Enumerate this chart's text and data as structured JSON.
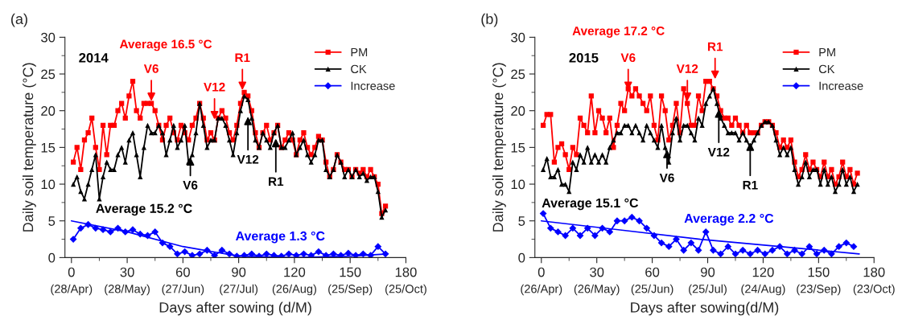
{
  "chart_data": [
    {
      "type": "line",
      "title": "(a)",
      "xlabel": "Days after sowing (d/M)",
      "ylabel": "Daily soil temperature (°C)",
      "x": [
        1,
        3,
        5,
        7,
        9,
        11,
        13,
        15,
        17,
        19,
        21,
        23,
        25,
        27,
        29,
        31,
        33,
        35,
        37,
        39,
        41,
        43,
        45,
        47,
        49,
        51,
        53,
        55,
        57,
        59,
        61,
        63,
        65,
        67,
        69,
        71,
        73,
        75,
        77,
        79,
        81,
        83,
        85,
        87,
        89,
        91,
        93,
        95,
        97,
        99,
        101,
        103,
        105,
        107,
        109,
        111,
        113,
        115,
        117,
        119,
        121,
        123,
        125,
        127,
        129,
        131,
        133,
        135,
        137,
        139,
        141,
        143,
        145,
        147,
        149,
        151,
        153,
        155,
        157,
        159,
        161,
        163,
        165,
        167,
        169
      ],
      "series": [
        {
          "name": "PM",
          "color": "#ff0000",
          "marker": "square",
          "values": [
            13,
            15,
            12,
            16,
            17,
            19,
            15,
            12,
            18,
            14,
            18,
            18,
            20,
            21,
            19,
            22,
            24,
            20,
            19,
            21,
            21,
            21,
            20,
            18,
            16,
            18,
            19,
            17,
            16,
            18,
            17,
            16,
            18,
            19,
            21,
            19,
            16,
            17,
            16,
            19,
            20,
            19,
            17,
            16,
            18,
            21,
            22.5,
            22,
            20,
            17,
            15,
            17,
            18,
            16,
            17,
            18,
            15,
            16,
            17,
            16,
            14,
            16,
            17,
            15,
            14,
            15,
            16.5,
            16,
            13,
            11,
            12,
            14,
            13,
            12,
            12,
            11,
            12,
            11.5,
            12,
            11,
            12,
            11,
            10,
            6,
            7
          ]
        },
        {
          "name": "CK",
          "color": "#000000",
          "marker": "triangle",
          "values": [
            10,
            11,
            9,
            8,
            10,
            12,
            14,
            8,
            11,
            13,
            12,
            12,
            14,
            15,
            13,
            16,
            17,
            14,
            11,
            15,
            18,
            17,
            17,
            18,
            17,
            14,
            16,
            18,
            15,
            16,
            18,
            13,
            14,
            17,
            21,
            18,
            15,
            16,
            16,
            19,
            19,
            18,
            16,
            14,
            17,
            20,
            22,
            21.5,
            19,
            16,
            15,
            17,
            16,
            15,
            17,
            18,
            15,
            15,
            16,
            17,
            14,
            15,
            16,
            14,
            13,
            14,
            16,
            16,
            12,
            11,
            12,
            14,
            13,
            11,
            12,
            11,
            12,
            11,
            11.5,
            10.5,
            11,
            11,
            9,
            5.5,
            6.5
          ]
        },
        {
          "name": "Increase",
          "color": "#0000ff",
          "marker": "diamond",
          "x": [
            1,
            5,
            9,
            13,
            17,
            21,
            25,
            29,
            33,
            37,
            41,
            45,
            49,
            53,
            57,
            61,
            65,
            69,
            73,
            77,
            81,
            85,
            89,
            93,
            97,
            101,
            105,
            109,
            113,
            117,
            121,
            125,
            129,
            133,
            137,
            141,
            145,
            149,
            153,
            157,
            161,
            165,
            169
          ],
          "values": [
            2.5,
            4,
            4.5,
            4,
            3.8,
            3.5,
            4,
            3.5,
            3.8,
            3.2,
            3,
            3.5,
            2,
            1.5,
            0.5,
            0.8,
            0.3,
            0.5,
            1,
            0.3,
            1,
            0.5,
            0.2,
            0.3,
            0.5,
            0.2,
            0.5,
            0.3,
            0.2,
            0.5,
            0.3,
            0.5,
            0.3,
            0.8,
            0.3,
            0.5,
            0.3,
            0.6,
            0.3,
            0.5,
            0.3,
            1.5,
            0.5
          ]
        },
        {
          "type": "line",
          "color": "#0000ff",
          "marker": "none",
          "x": [
            0,
            30,
            60,
            90,
            120,
            150,
            170
          ],
          "values": [
            5,
            3.5,
            1.5,
            0.2,
            0,
            0.2,
            0.5
          ]
        }
      ],
      "annotations": [
        "2014",
        "Average 16.5 °C",
        "Average 15.2 °C",
        "Average 1.3 °C",
        {
          "text": "V6",
          "x": 43,
          "y": 21
        },
        {
          "text": "V12",
          "x": 77,
          "y": 18.5
        },
        {
          "text": "R1",
          "x": 92,
          "y": 22.5
        },
        {
          "text": "V6",
          "x": 64,
          "y": 14
        },
        {
          "text": "V12",
          "x": 95,
          "y": 19.5
        },
        {
          "text": "R1",
          "x": 110,
          "y": 16.5
        },
        "(28/Apr)",
        "(28/May)",
        "(27/Jun)",
        "(27/Jul)",
        "(26/Aug)",
        "(25/Sep)",
        "(25/Oct)"
      ],
      "xlim": [
        -3.5,
        180
      ],
      "ylim": [
        0,
        30
      ],
      "xticks": [
        0,
        30,
        60,
        90,
        120,
        150,
        180
      ],
      "yticks": [
        0,
        5,
        10,
        15,
        20,
        25,
        30
      ],
      "grid": false,
      "legend": "top right",
      "line_style": "solid"
    },
    {
      "type": "line",
      "title": "(b)",
      "xlabel": "Days after sowing(d/M)",
      "ylabel": "Daily soil temperature (°C)",
      "x": [
        1,
        3,
        5,
        7,
        9,
        11,
        13,
        15,
        17,
        19,
        21,
        23,
        25,
        27,
        29,
        31,
        33,
        35,
        37,
        39,
        41,
        43,
        45,
        47,
        49,
        51,
        53,
        55,
        57,
        59,
        61,
        63,
        65,
        67,
        69,
        71,
        73,
        75,
        77,
        79,
        81,
        83,
        85,
        87,
        89,
        91,
        93,
        95,
        97,
        99,
        101,
        103,
        105,
        107,
        109,
        111,
        113,
        115,
        117,
        119,
        121,
        123,
        125,
        127,
        129,
        131,
        133,
        135,
        137,
        139,
        141,
        143,
        145,
        147,
        149,
        151,
        153,
        155,
        157,
        159,
        161,
        163,
        165,
        167,
        169,
        171
      ],
      "series": [
        {
          "name": "PM",
          "color": "#ff0000",
          "marker": "square",
          "values": [
            18,
            19.5,
            19.5,
            13,
            15,
            15.5,
            14,
            12,
            15,
            14,
            19,
            18,
            17,
            22,
            17,
            20,
            19,
            17,
            19,
            15,
            18,
            21,
            20,
            23,
            22,
            23,
            22,
            21,
            20,
            22,
            18,
            16,
            22,
            20,
            16,
            18,
            21,
            17,
            23,
            21,
            18,
            18,
            22,
            20,
            24,
            24,
            23,
            22,
            20,
            19,
            19,
            18,
            19,
            18,
            17,
            18,
            17,
            17,
            17,
            18,
            18.5,
            18.5,
            18,
            17,
            15,
            16,
            15,
            16,
            13,
            11,
            12,
            14,
            12,
            13,
            12,
            11,
            13,
            11,
            12,
            10,
            11,
            13,
            11,
            12,
            10,
            11.5
          ]
        },
        {
          "name": "CK",
          "color": "#000000",
          "marker": "triangle",
          "values": [
            12,
            13.5,
            11,
            11,
            12,
            10,
            10,
            9,
            13,
            12,
            14,
            13,
            15,
            13,
            14,
            13,
            14,
            13,
            15,
            16,
            17,
            17,
            18,
            18,
            17,
            18,
            17,
            16,
            18,
            17,
            16,
            15,
            18,
            15,
            13,
            17,
            19,
            16,
            18,
            18,
            17,
            16,
            19,
            18,
            21,
            22,
            23,
            21,
            19,
            18,
            17,
            17,
            17,
            16,
            17,
            16,
            15,
            16,
            17,
            18,
            18.5,
            18.5,
            18,
            16,
            14,
            15,
            14,
            15,
            12,
            10,
            11,
            13,
            11,
            12,
            12,
            10,
            12,
            10,
            11,
            9,
            10,
            12,
            10,
            11,
            9,
            10
          ]
        },
        {
          "name": "Increase",
          "color": "#0000ff",
          "marker": "diamond",
          "x": [
            1,
            5,
            9,
            13,
            17,
            21,
            25,
            29,
            33,
            37,
            41,
            45,
            49,
            53,
            57,
            61,
            65,
            69,
            73,
            77,
            81,
            85,
            89,
            93,
            97,
            101,
            105,
            109,
            113,
            117,
            121,
            125,
            129,
            133,
            137,
            141,
            145,
            149,
            153,
            157,
            161,
            165,
            169
          ],
          "values": [
            6,
            4,
            3.5,
            3,
            4,
            3,
            4,
            3,
            4,
            3.5,
            5,
            5,
            5.5,
            5,
            4,
            3,
            2,
            1.5,
            2.5,
            1,
            2,
            1,
            3.5,
            1,
            0.5,
            1.5,
            0.5,
            1,
            0.5,
            1,
            0.5,
            1,
            1.5,
            0.5,
            1,
            0.5,
            1.5,
            0.5,
            1,
            0.5,
            1.5,
            2,
            1.5
          ]
        },
        {
          "type": "line",
          "color": "#0000ff",
          "marker": "none",
          "x": [
            0,
            86,
            172
          ],
          "values": [
            5,
            2.5,
            0.5
          ]
        }
      ],
      "annotations": [
        "2015",
        "Average 17.2 °C",
        "Average 15.1 °C",
        "Average 2.2 °C",
        {
          "text": "V6",
          "x": 47,
          "y": 22.5
        },
        {
          "text": "V12",
          "x": 79,
          "y": 21
        },
        {
          "text": "R1",
          "x": 94,
          "y": 24
        },
        {
          "text": "V6",
          "x": 68,
          "y": 15
        },
        {
          "text": "V12",
          "x": 96,
          "y": 20.5
        },
        {
          "text": "R1",
          "x": 113,
          "y": 16
        },
        "(26/Apr)",
        "(26/May)",
        "(25/Jun)",
        "(25/Jul)",
        "(24/Aug)",
        "(23/Sep)",
        "(23/Oct)"
      ],
      "xlim": [
        -3.5,
        180
      ],
      "ylim": [
        0,
        30
      ],
      "xticks": [
        0,
        30,
        60,
        90,
        120,
        150,
        180
      ],
      "yticks": [
        0,
        5,
        10,
        15,
        20,
        25,
        30
      ],
      "grid": false,
      "legend": "top right",
      "line_style": "solid"
    }
  ]
}
